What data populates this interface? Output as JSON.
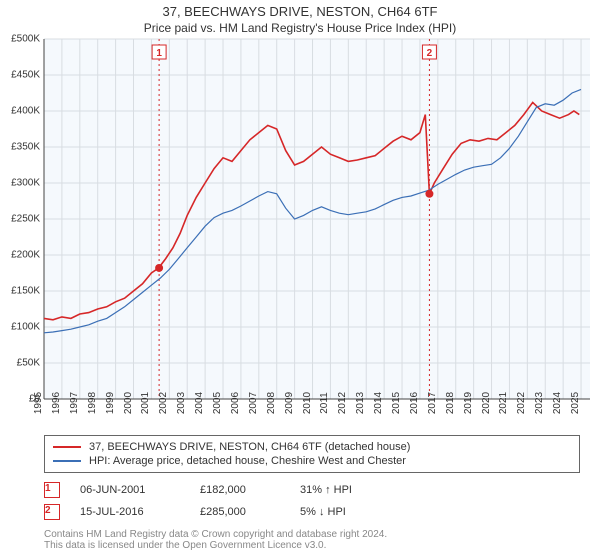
{
  "title": "37, BEECHWAYS DRIVE, NESTON, CH64 6TF",
  "subtitle": "Price paid vs. HM Land Registry's House Price Index (HPI)",
  "chart": {
    "type": "line",
    "plot_bg": "#f5f9fd",
    "grid_color": "#d8dde2",
    "axis_color": "#444444",
    "ylim": [
      0,
      500000
    ],
    "ytick_step": 50000,
    "y_prefix": "£",
    "y_suffix_k": "K",
    "x_years": [
      1995,
      1996,
      1997,
      1998,
      1999,
      2000,
      2001,
      2002,
      2003,
      2004,
      2005,
      2006,
      2007,
      2008,
      2009,
      2010,
      2011,
      2012,
      2013,
      2014,
      2015,
      2016,
      2017,
      2018,
      2019,
      2020,
      2021,
      2022,
      2023,
      2024,
      2025
    ],
    "xlim": [
      1995,
      2025.5
    ],
    "series": [
      {
        "name": "property",
        "color": "#d62728",
        "width": 1.6,
        "points": [
          [
            1995.0,
            112000
          ],
          [
            1995.5,
            110000
          ],
          [
            1996.0,
            114000
          ],
          [
            1996.5,
            112000
          ],
          [
            1997.0,
            118000
          ],
          [
            1997.5,
            120000
          ],
          [
            1998.0,
            125000
          ],
          [
            1998.5,
            128000
          ],
          [
            1999.0,
            135000
          ],
          [
            1999.5,
            140000
          ],
          [
            2000.0,
            150000
          ],
          [
            2000.5,
            160000
          ],
          [
            2001.0,
            175000
          ],
          [
            2001.4,
            182000
          ],
          [
            2001.8,
            195000
          ],
          [
            2002.2,
            210000
          ],
          [
            2002.6,
            230000
          ],
          [
            2003.0,
            255000
          ],
          [
            2003.5,
            280000
          ],
          [
            2004.0,
            300000
          ],
          [
            2004.5,
            320000
          ],
          [
            2005.0,
            335000
          ],
          [
            2005.5,
            330000
          ],
          [
            2006.0,
            345000
          ],
          [
            2006.5,
            360000
          ],
          [
            2007.0,
            370000
          ],
          [
            2007.5,
            380000
          ],
          [
            2008.0,
            375000
          ],
          [
            2008.5,
            345000
          ],
          [
            2009.0,
            325000
          ],
          [
            2009.5,
            330000
          ],
          [
            2010.0,
            340000
          ],
          [
            2010.5,
            350000
          ],
          [
            2011.0,
            340000
          ],
          [
            2011.5,
            335000
          ],
          [
            2012.0,
            330000
          ],
          [
            2012.5,
            332000
          ],
          [
            2013.0,
            335000
          ],
          [
            2013.5,
            338000
          ],
          [
            2014.0,
            348000
          ],
          [
            2014.5,
            358000
          ],
          [
            2015.0,
            365000
          ],
          [
            2015.5,
            360000
          ],
          [
            2016.0,
            370000
          ],
          [
            2016.3,
            395000
          ],
          [
            2016.53,
            285000
          ],
          [
            2016.8,
            300000
          ],
          [
            2017.3,
            320000
          ],
          [
            2017.8,
            340000
          ],
          [
            2018.3,
            355000
          ],
          [
            2018.8,
            360000
          ],
          [
            2019.3,
            358000
          ],
          [
            2019.8,
            362000
          ],
          [
            2020.3,
            360000
          ],
          [
            2020.8,
            370000
          ],
          [
            2021.3,
            380000
          ],
          [
            2021.8,
            395000
          ],
          [
            2022.3,
            412000
          ],
          [
            2022.8,
            400000
          ],
          [
            2023.3,
            395000
          ],
          [
            2023.8,
            390000
          ],
          [
            2024.3,
            395000
          ],
          [
            2024.6,
            400000
          ],
          [
            2024.9,
            395000
          ]
        ]
      },
      {
        "name": "hpi",
        "color": "#3b6fb6",
        "width": 1.2,
        "points": [
          [
            1995.0,
            92000
          ],
          [
            1995.5,
            93000
          ],
          [
            1996.0,
            95000
          ],
          [
            1996.5,
            97000
          ],
          [
            1997.0,
            100000
          ],
          [
            1997.5,
            103000
          ],
          [
            1998.0,
            108000
          ],
          [
            1998.5,
            112000
          ],
          [
            1999.0,
            120000
          ],
          [
            1999.5,
            128000
          ],
          [
            2000.0,
            138000
          ],
          [
            2000.5,
            148000
          ],
          [
            2001.0,
            158000
          ],
          [
            2001.5,
            168000
          ],
          [
            2002.0,
            180000
          ],
          [
            2002.5,
            195000
          ],
          [
            2003.0,
            210000
          ],
          [
            2003.5,
            225000
          ],
          [
            2004.0,
            240000
          ],
          [
            2004.5,
            252000
          ],
          [
            2005.0,
            258000
          ],
          [
            2005.5,
            262000
          ],
          [
            2006.0,
            268000
          ],
          [
            2006.5,
            275000
          ],
          [
            2007.0,
            282000
          ],
          [
            2007.5,
            288000
          ],
          [
            2008.0,
            285000
          ],
          [
            2008.5,
            265000
          ],
          [
            2009.0,
            250000
          ],
          [
            2009.5,
            255000
          ],
          [
            2010.0,
            262000
          ],
          [
            2010.5,
            267000
          ],
          [
            2011.0,
            262000
          ],
          [
            2011.5,
            258000
          ],
          [
            2012.0,
            256000
          ],
          [
            2012.5,
            258000
          ],
          [
            2013.0,
            260000
          ],
          [
            2013.5,
            264000
          ],
          [
            2014.0,
            270000
          ],
          [
            2014.5,
            276000
          ],
          [
            2015.0,
            280000
          ],
          [
            2015.5,
            282000
          ],
          [
            2016.0,
            286000
          ],
          [
            2016.5,
            290000
          ],
          [
            2017.0,
            298000
          ],
          [
            2017.5,
            305000
          ],
          [
            2018.0,
            312000
          ],
          [
            2018.5,
            318000
          ],
          [
            2019.0,
            322000
          ],
          [
            2019.5,
            324000
          ],
          [
            2020.0,
            326000
          ],
          [
            2020.5,
            335000
          ],
          [
            2021.0,
            348000
          ],
          [
            2021.5,
            365000
          ],
          [
            2022.0,
            385000
          ],
          [
            2022.5,
            405000
          ],
          [
            2023.0,
            410000
          ],
          [
            2023.5,
            408000
          ],
          [
            2024.0,
            415000
          ],
          [
            2024.5,
            425000
          ],
          [
            2025.0,
            430000
          ]
        ]
      }
    ],
    "sale_markers": [
      {
        "label": "1",
        "x": 2001.43,
        "y": 182000,
        "color": "#d62728"
      },
      {
        "label": "2",
        "x": 2016.53,
        "y": 285000,
        "color": "#d62728"
      }
    ]
  },
  "legend": {
    "items": [
      {
        "color": "#d62728",
        "width": 2,
        "label": "37, BEECHWAYS DRIVE, NESTON, CH64 6TF (detached house)"
      },
      {
        "color": "#3b6fb6",
        "width": 1.2,
        "label": "HPI: Average price, detached house, Cheshire West and Chester"
      }
    ]
  },
  "events": [
    {
      "num": "1",
      "date": "06-JUN-2001",
      "price": "£182,000",
      "delta": "31% ↑ HPI",
      "border": "#d62728"
    },
    {
      "num": "2",
      "date": "15-JUL-2016",
      "price": "£285,000",
      "delta": "5% ↓ HPI",
      "border": "#d62728"
    }
  ],
  "footer": {
    "line1": "Contains HM Land Registry data © Crown copyright and database right 2024.",
    "line2": "This data is licensed under the Open Government Licence v3.0."
  }
}
